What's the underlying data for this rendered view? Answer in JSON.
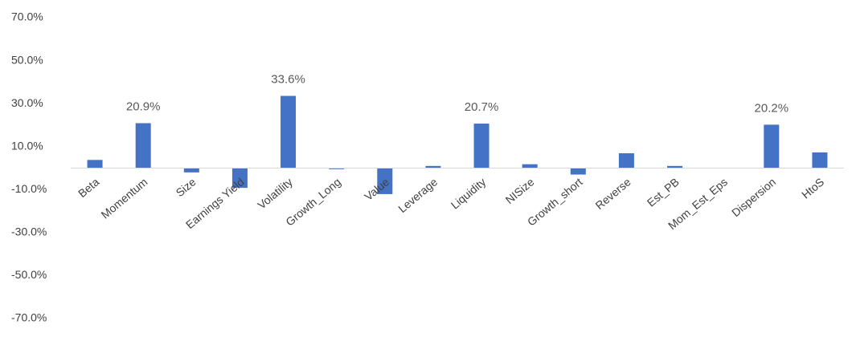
{
  "chart_data": {
    "type": "bar",
    "categories": [
      "Beta",
      "Momentum",
      "Size",
      "Earnings Yield",
      "Volatility",
      "Growth_Long",
      "Value",
      "Leverage",
      "Liquidity",
      "NISize",
      "Growth_short",
      "Reverse",
      "Est_PB",
      "Mom_Est_Eps",
      "Dispersion",
      "HtoS"
    ],
    "values": [
      3.8,
      20.9,
      -2.0,
      -9.2,
      33.6,
      -0.5,
      -12.1,
      1.0,
      20.7,
      1.8,
      -3.0,
      6.9,
      1.0,
      0,
      20.2,
      7.3
    ],
    "value_labels": [
      null,
      "20.9%",
      null,
      null,
      "33.6%",
      null,
      null,
      null,
      "20.7%",
      null,
      null,
      null,
      null,
      null,
      "20.2%",
      null
    ],
    "color": "#4472c4",
    "ylim": [
      -70,
      70
    ],
    "yticks": [
      {
        "value": 70,
        "label": "70.0%"
      },
      {
        "value": 50,
        "label": "50.0%"
      },
      {
        "value": 30,
        "label": "30.0%"
      },
      {
        "value": 10,
        "label": "10.0%"
      },
      {
        "value": -10,
        "label": "-10.0%"
      },
      {
        "value": -30,
        "label": "-30.0%"
      },
      {
        "value": -50,
        "label": "-50.0%"
      },
      {
        "value": -70,
        "label": "-70.0%"
      }
    ],
    "grid": false
  }
}
